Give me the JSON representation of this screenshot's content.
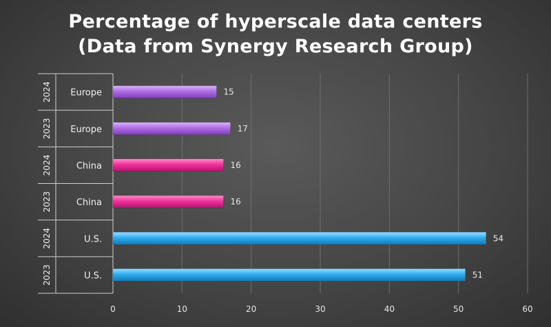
{
  "title_line1": "Percentage of hyperscale data centers",
  "title_line2": "(Data from Synergy Research Group)",
  "chart_data": {
    "type": "bar",
    "orientation": "horizontal",
    "title": "Percentage of hyperscale data centers (Data from Synergy Research Group)",
    "groups": [
      {
        "name": "Europe",
        "color": "#b06ee6",
        "rows": [
          {
            "year": "2024",
            "label": "Europe",
            "value": 15
          },
          {
            "year": "2023",
            "label": "Europe",
            "value": 17
          }
        ]
      },
      {
        "name": "China",
        "color": "#f0319a",
        "rows": [
          {
            "year": "2024",
            "label": "China",
            "value": 16
          },
          {
            "year": "2023",
            "label": "China",
            "value": 16
          }
        ]
      },
      {
        "name": "U.S.",
        "color": "#2eaef0",
        "rows": [
          {
            "year": "2024",
            "label": "U.S.",
            "value": 54
          },
          {
            "year": "2023",
            "label": "U.S.",
            "value": 51
          }
        ]
      }
    ],
    "xlim": [
      0,
      60
    ],
    "xticks": [
      0,
      10,
      20,
      30,
      40,
      50,
      60
    ],
    "grid": true,
    "legend": "none"
  }
}
